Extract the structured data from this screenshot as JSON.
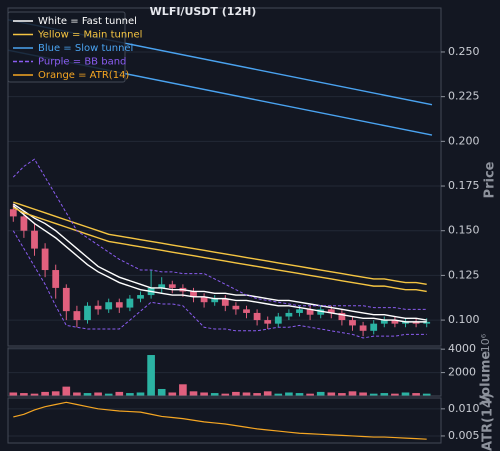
{
  "chart_data": {
    "type": "candlestick",
    "title": "WLFI/USDT (12H)",
    "ylabel": "Price",
    "ylim": [
      0.0855,
      0.2746
    ],
    "yticks": [
      {
        "value": 0.1,
        "label": "0.100"
      },
      0.125,
      {
        "value": 0.15,
        "label": "0.150"
      },
      0.175,
      {
        "value": 0.2,
        "label": "0.200"
      },
      0.225,
      {
        "value": 0.25,
        "label": "0.250"
      }
    ],
    "grid": true,
    "legend": "upper left",
    "up_color": "#2bb3a3",
    "down_color": "#e0607e",
    "open": [
      0.162,
      0.158,
      0.15,
      0.14,
      0.128,
      0.118,
      0.105,
      0.1,
      0.108,
      0.106,
      0.11,
      0.107,
      0.112,
      0.114,
      0.118,
      0.12,
      0.118,
      0.116,
      0.113,
      0.11,
      0.112,
      0.108,
      0.106,
      0.104,
      0.1,
      0.098,
      0.102,
      0.104,
      0.106,
      0.103,
      0.106,
      0.104,
      0.1,
      0.097,
      0.094,
      0.098,
      0.1,
      0.098,
      0.099,
      0.098
    ],
    "high": [
      0.165,
      0.161,
      0.154,
      0.143,
      0.131,
      0.12,
      0.108,
      0.11,
      0.111,
      0.112,
      0.112,
      0.114,
      0.116,
      0.128,
      0.124,
      0.122,
      0.12,
      0.118,
      0.115,
      0.114,
      0.114,
      0.11,
      0.108,
      0.106,
      0.102,
      0.104,
      0.106,
      0.108,
      0.108,
      0.108,
      0.108,
      0.106,
      0.102,
      0.099,
      0.1,
      0.102,
      0.102,
      0.101,
      0.101,
      0.101
    ],
    "low": [
      0.155,
      0.146,
      0.136,
      0.124,
      0.112,
      0.1,
      0.096,
      0.098,
      0.103,
      0.104,
      0.104,
      0.105,
      0.11,
      0.112,
      0.115,
      0.115,
      0.113,
      0.11,
      0.107,
      0.108,
      0.105,
      0.103,
      0.101,
      0.097,
      0.095,
      0.096,
      0.1,
      0.102,
      0.1,
      0.101,
      0.101,
      0.097,
      0.094,
      0.091,
      0.092,
      0.096,
      0.096,
      0.096,
      0.096,
      0.096
    ],
    "close": [
      0.158,
      0.15,
      0.14,
      0.128,
      0.118,
      0.105,
      0.1,
      0.108,
      0.106,
      0.11,
      0.107,
      0.112,
      0.114,
      0.118,
      0.12,
      0.118,
      0.116,
      0.113,
      0.11,
      0.112,
      0.108,
      0.106,
      0.104,
      0.1,
      0.098,
      0.102,
      0.104,
      0.106,
      0.103,
      0.106,
      0.104,
      0.1,
      0.097,
      0.094,
      0.098,
      0.1,
      0.098,
      0.099,
      0.098,
      0.099
    ],
    "overlays": [
      {
        "name": "White = Fast tunnel",
        "color": "#ffffff",
        "dashed": false,
        "upper": [
          0.165,
          0.161,
          0.157,
          0.154,
          0.15,
          0.145,
          0.14,
          0.135,
          0.13,
          0.127,
          0.124,
          0.122,
          0.12,
          0.118,
          0.118,
          0.117,
          0.117,
          0.116,
          0.116,
          0.115,
          0.115,
          0.114,
          0.114,
          0.113,
          0.112,
          0.111,
          0.111,
          0.11,
          0.109,
          0.108,
          0.107,
          0.106,
          0.105,
          0.104,
          0.103,
          0.103,
          0.102,
          0.101,
          0.101,
          0.1
        ],
        "lower": [
          0.164,
          0.159,
          0.154,
          0.15,
          0.146,
          0.141,
          0.136,
          0.131,
          0.127,
          0.124,
          0.121,
          0.119,
          0.117,
          0.116,
          0.115,
          0.114,
          0.114,
          0.113,
          0.113,
          0.112,
          0.112,
          0.111,
          0.111,
          0.11,
          0.109,
          0.108,
          0.108,
          0.107,
          0.106,
          0.105,
          0.104,
          0.103,
          0.102,
          0.101,
          0.101,
          0.1,
          0.1,
          0.099,
          0.099,
          0.099
        ]
      },
      {
        "name": "Yellow = Main tunnel",
        "color": "#f5c542",
        "dashed": false,
        "upper": [
          0.166,
          0.164,
          0.162,
          0.16,
          0.158,
          0.156,
          0.154,
          0.152,
          0.15,
          0.148,
          0.147,
          0.146,
          0.145,
          0.144,
          0.143,
          0.142,
          0.141,
          0.14,
          0.139,
          0.138,
          0.137,
          0.136,
          0.135,
          0.134,
          0.133,
          0.132,
          0.131,
          0.13,
          0.129,
          0.128,
          0.127,
          0.126,
          0.125,
          0.124,
          0.123,
          0.123,
          0.122,
          0.121,
          0.121,
          0.12
        ],
        "lower": [
          0.163,
          0.16,
          0.158,
          0.156,
          0.154,
          0.152,
          0.15,
          0.148,
          0.146,
          0.144,
          0.143,
          0.142,
          0.141,
          0.14,
          0.139,
          0.138,
          0.137,
          0.136,
          0.135,
          0.134,
          0.133,
          0.132,
          0.131,
          0.13,
          0.129,
          0.128,
          0.127,
          0.126,
          0.125,
          0.124,
          0.123,
          0.122,
          0.121,
          0.12,
          0.119,
          0.119,
          0.118,
          0.117,
          0.117,
          0.116
        ]
      },
      {
        "name": "Blue = Slow tunnel",
        "color": "#4aa3f0",
        "dashed": false,
        "x": [
          -0.5,
          39.5
        ],
        "upper": [
          0.268,
          0.2205
        ],
        "lower": [
          0.251,
          0.2035
        ]
      },
      {
        "name": "Purple = BB band",
        "color": "#8a5cf0",
        "dashed": true,
        "upper": [
          0.18,
          0.186,
          0.19,
          0.18,
          0.17,
          0.16,
          0.15,
          0.146,
          0.142,
          0.138,
          0.134,
          0.131,
          0.128,
          0.128,
          0.127,
          0.127,
          0.126,
          0.126,
          0.126,
          0.123,
          0.12,
          0.117,
          0.114,
          0.112,
          0.111,
          0.11,
          0.109,
          0.108,
          0.108,
          0.108,
          0.108,
          0.108,
          0.108,
          0.108,
          0.107,
          0.107,
          0.107,
          0.106,
          0.106,
          0.106
        ],
        "lower": [
          0.15,
          0.14,
          0.13,
          0.12,
          0.108,
          0.097,
          0.096,
          0.095,
          0.095,
          0.095,
          0.095,
          0.1,
          0.105,
          0.11,
          0.109,
          0.109,
          0.108,
          0.102,
          0.096,
          0.095,
          0.095,
          0.094,
          0.094,
          0.094,
          0.095,
          0.096,
          0.096,
          0.097,
          0.096,
          0.095,
          0.094,
          0.093,
          0.092,
          0.09,
          0.091,
          0.091,
          0.091,
          0.092,
          0.092,
          0.092
        ]
      }
    ],
    "volume": {
      "type": "bar",
      "ylabel": "Volume",
      "offset_label": "10⁶",
      "ylim": [
        0,
        4100
      ],
      "yticks": [
        2000,
        4000
      ],
      "values": [
        300,
        250,
        200,
        350,
        400,
        800,
        300,
        250,
        300,
        200,
        350,
        250,
        300,
        3500,
        600,
        300,
        1000,
        400,
        300,
        250,
        200,
        350,
        300,
        250,
        400,
        200,
        300,
        250,
        200,
        350,
        300,
        250,
        400,
        300,
        200,
        250,
        200,
        300,
        250,
        200
      ]
    },
    "atr": {
      "type": "line",
      "name": "Orange = ATR(14)",
      "color": "#f5a623",
      "ylabel": "ATR(14)",
      "ylim": [
        0.0037,
        0.012
      ],
      "yticks": [
        {
          "value": 0.005,
          "label": "0.005"
        },
        {
          "value": 0.01,
          "label": "0.010"
        }
      ],
      "values": [
        0.0085,
        0.009,
        0.0098,
        0.0104,
        0.0108,
        0.0112,
        0.0108,
        0.0104,
        0.01,
        0.0098,
        0.0096,
        0.0095,
        0.0094,
        0.009,
        0.0086,
        0.0084,
        0.0082,
        0.0079,
        0.0076,
        0.0074,
        0.0072,
        0.0069,
        0.0066,
        0.0063,
        0.0061,
        0.0059,
        0.0057,
        0.0055,
        0.0054,
        0.0053,
        0.0052,
        0.0051,
        0.005,
        0.0049,
        0.0048,
        0.0048,
        0.0047,
        0.0046,
        0.0045,
        0.0044
      ]
    }
  }
}
